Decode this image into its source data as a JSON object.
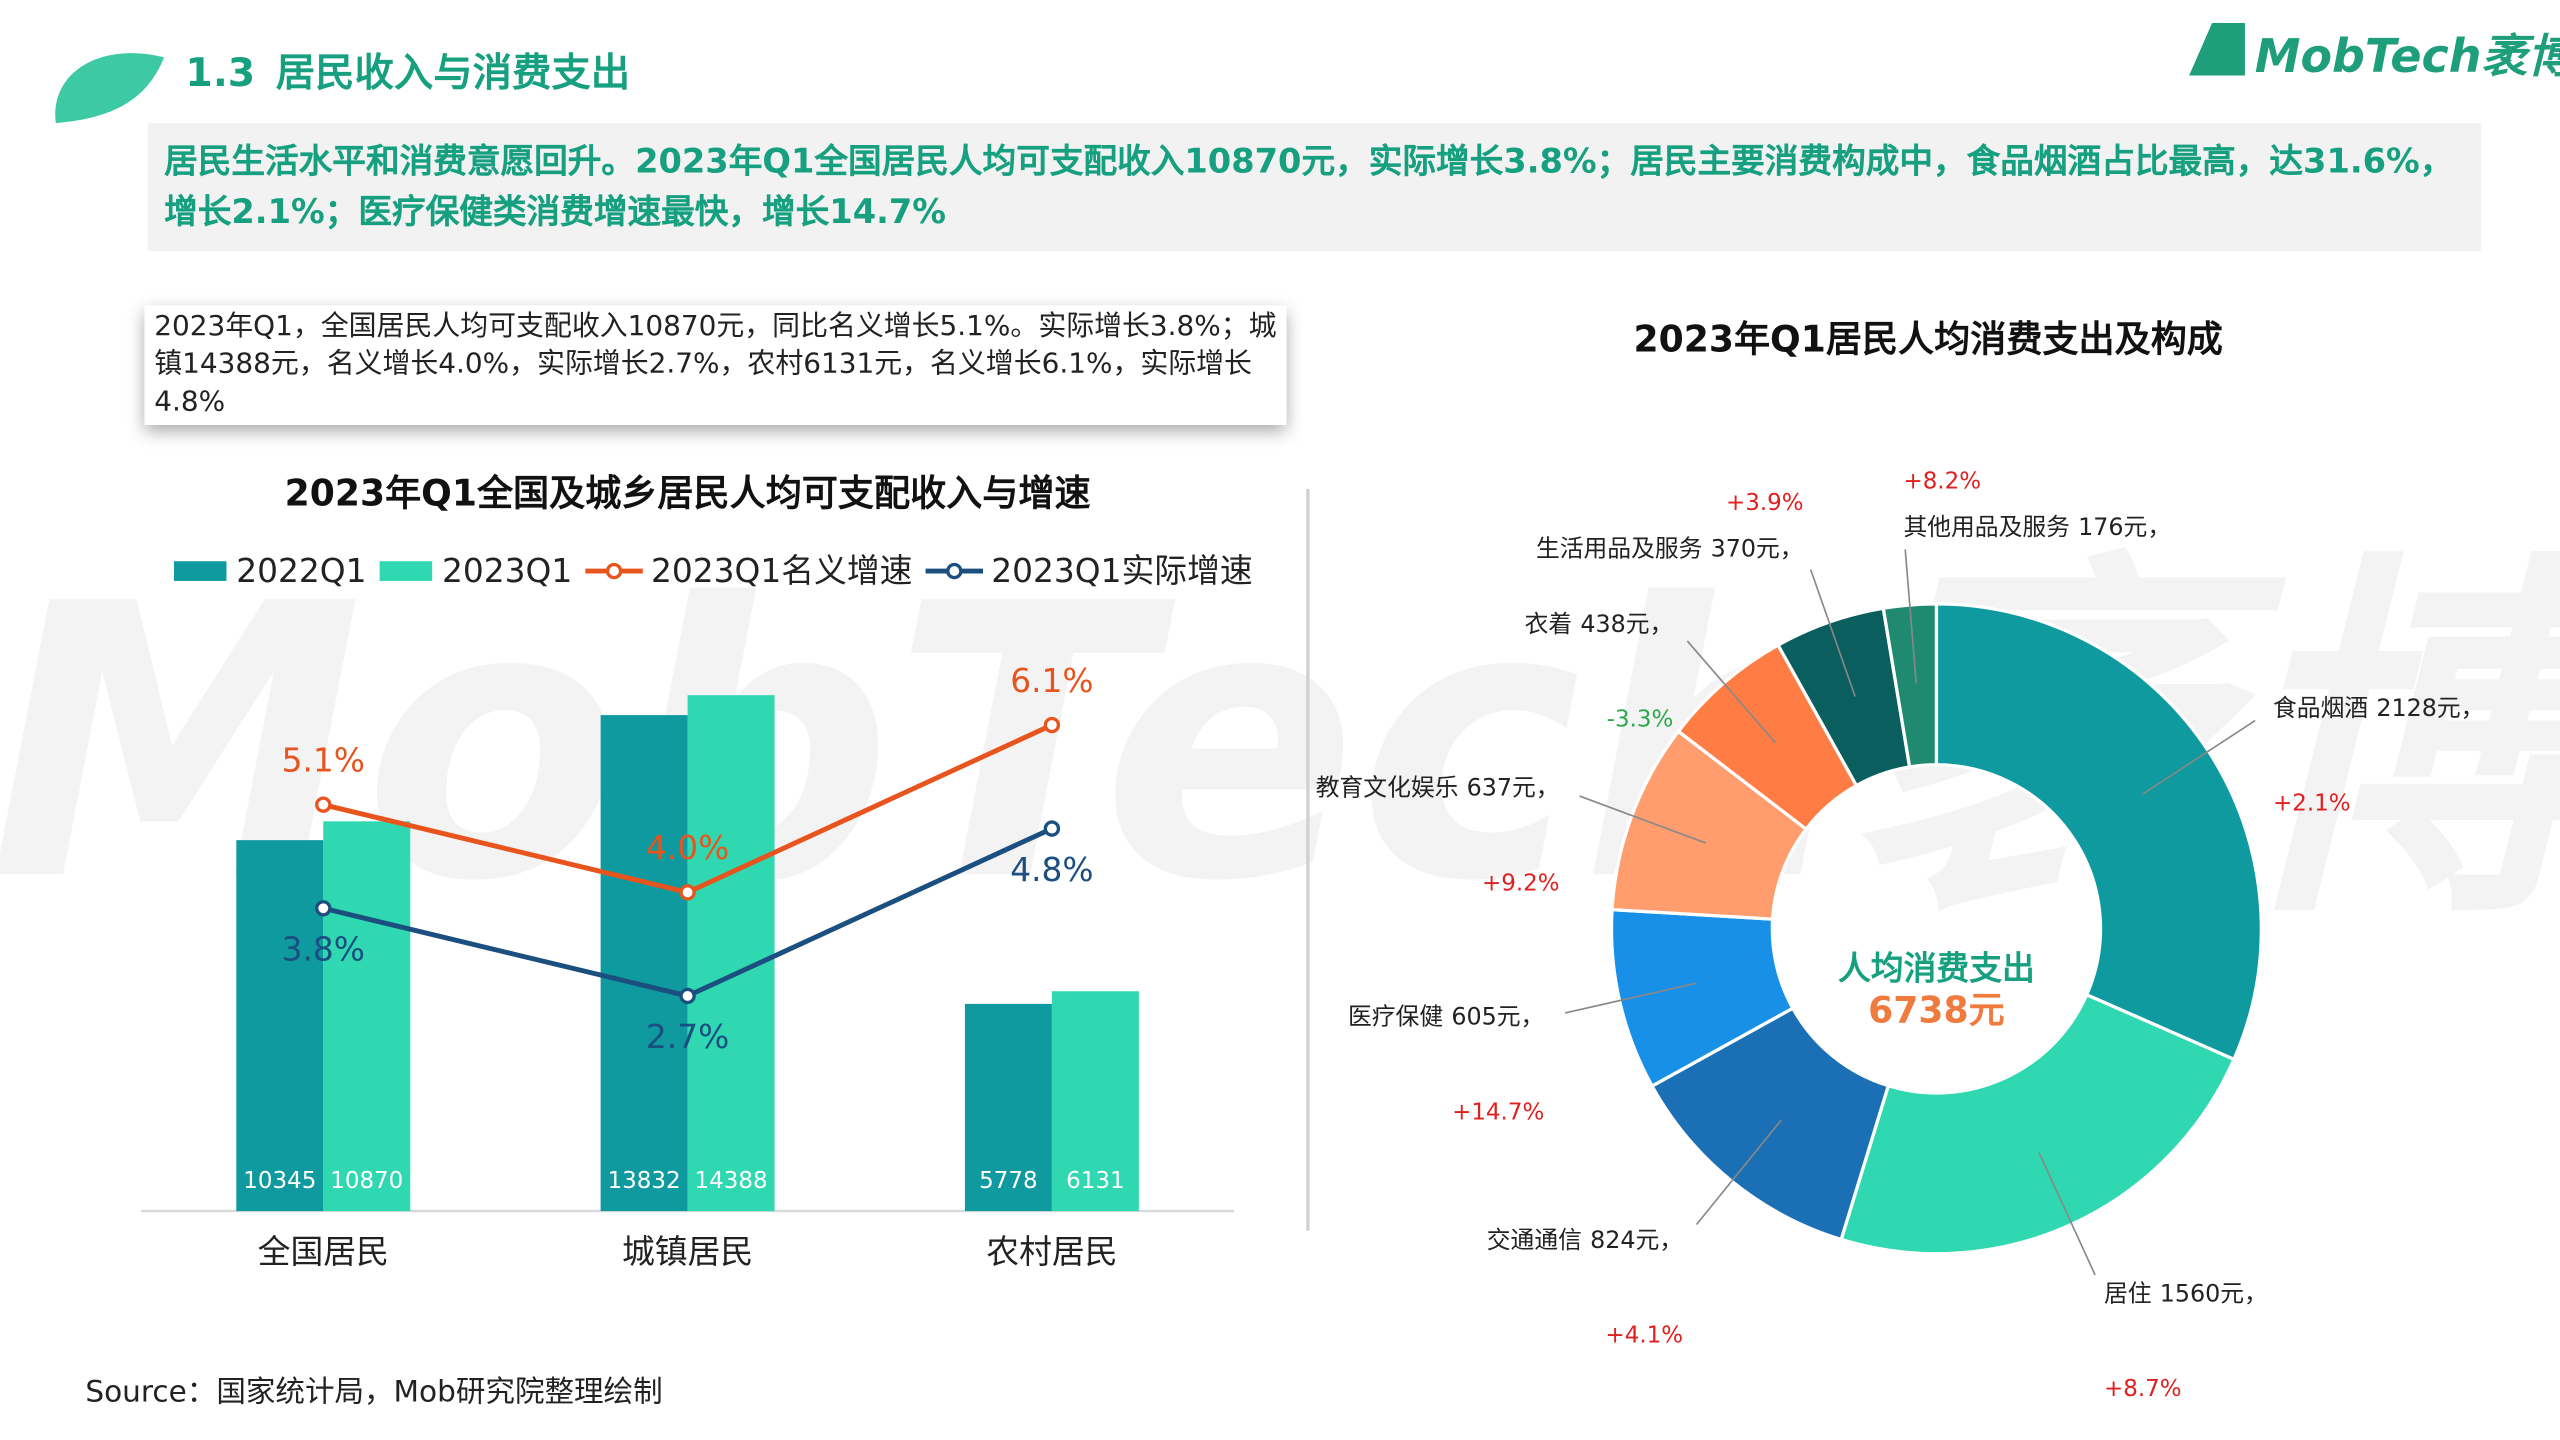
{
  "header": {
    "section": "1.3",
    "title": "居民收入与消费支出",
    "logo_en": "MobTech",
    "logo_cn": "袤博"
  },
  "summary": "居民生活水平和消费意愿回升。2023年Q1全国居民人均可支配收入10870元，实际增长3.8%；居民主要消费构成中，食品烟酒占比最高，达31.6%，增长2.1%；医疗保健类消费增速最快，增长14.7%",
  "note": "2023年Q1，全国居民人均可支配收入10870元，同比名义增长5.1%。实际增长3.8%；城镇14388元，名义增长4.0%，实际增长2.7%，农村6131元，名义增长6.1%，实际增长4.8%",
  "source": "Source：国家统计局，Mob研究院整理绘制",
  "chart_data": [
    {
      "type": "bar",
      "title": "2023年Q1全国及城乡居民人均可支配收入与增速",
      "categories": [
        "全国居民",
        "城镇居民",
        "农村居民"
      ],
      "ylim": [
        0,
        20000
      ],
      "y2lim": [
        0,
        9
      ],
      "series": [
        {
          "name": "2022Q1",
          "color": "#0e9a9e",
          "values": [
            10345,
            13832,
            5778
          ]
        },
        {
          "name": "2023Q1",
          "color": "#2fd8b0",
          "values": [
            10870,
            14388,
            6131
          ]
        },
        {
          "name": "2023Q1名义增速",
          "color": "#e8541e",
          "axis": "y2",
          "values": [
            5.1,
            4.0,
            6.1
          ],
          "value_labels": [
            "5.1%",
            "4.0%",
            "6.1%"
          ]
        },
        {
          "name": "2023Q1实际增速",
          "color": "#1b4f80",
          "axis": "y2",
          "values": [
            3.8,
            2.7,
            4.8
          ],
          "value_labels": [
            "3.8%",
            "2.7%",
            "4.8%"
          ]
        }
      ]
    },
    {
      "type": "donut",
      "title": "2023年Q1居民人均消费支出及构成",
      "categories": [
        "食品烟酒",
        "居住",
        "交通通信",
        "医疗保健",
        "教育文化娱乐",
        "衣着",
        "生活用品及服务",
        "其他用品及服务"
      ],
      "values": [
        2128,
        1560,
        824,
        605,
        637,
        438,
        370,
        176
      ],
      "value_labels": [
        "2128元，",
        "1560元，",
        "824元，",
        "605元，",
        "637元，",
        "438元，",
        "370元，",
        "176元，"
      ],
      "colors": [
        "#0e9a9e",
        "#2fd8b0",
        "#1a6fb5",
        "#1890e8",
        "#ff9d6e",
        "#ff7d45",
        "#0b5e5e",
        "#1f8a70"
      ],
      "growth": [
        2.1,
        8.7,
        4.1,
        14.7,
        9.2,
        -3.3,
        3.9,
        8.2
      ],
      "growth_labels": [
        "+2.1%",
        "+8.7%",
        "+4.1%",
        "+14.7%",
        "+9.2%",
        "-3.3%",
        "+3.9%",
        "+8.2%"
      ],
      "center_label": "人均消费支出",
      "total": 6738,
      "total_label": "6738元"
    }
  ]
}
